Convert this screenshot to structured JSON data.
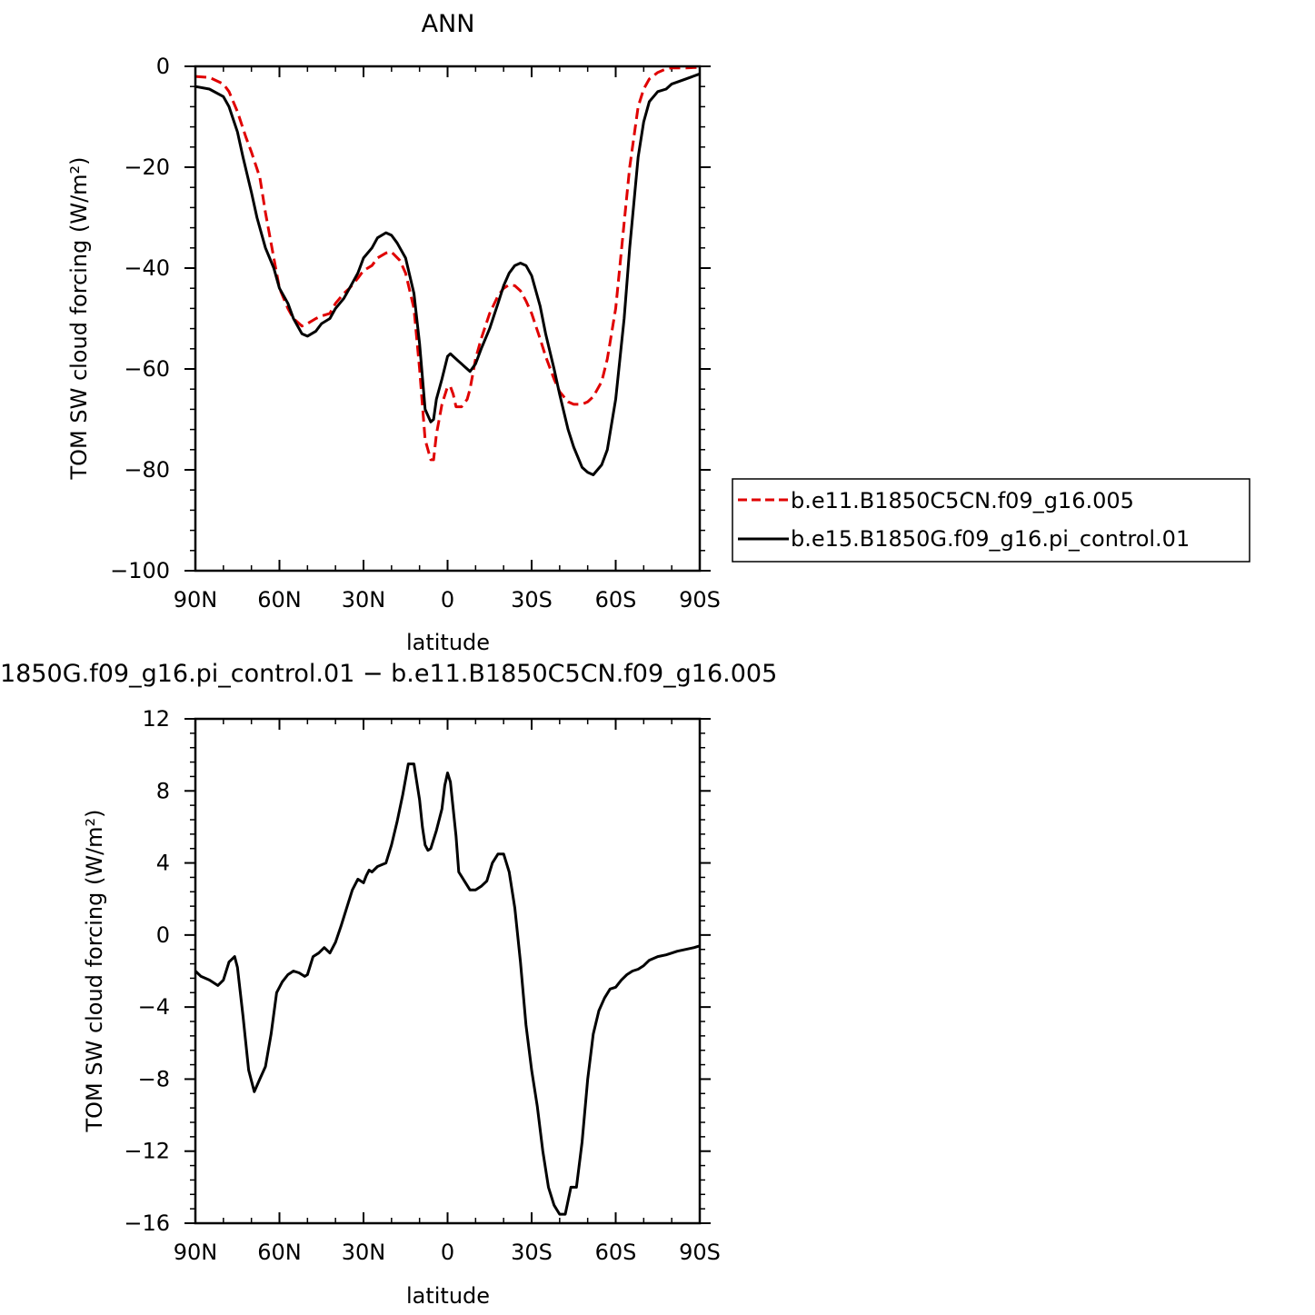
{
  "chart_data": [
    {
      "type": "line",
      "title": "ANN",
      "xlabel": "latitude",
      "ylabel": "TOM SW cloud forcing (W/m²)",
      "xlim": [
        -90,
        90
      ],
      "ylim": [
        -100,
        0
      ],
      "xticks": [
        -90,
        -60,
        -30,
        0,
        30,
        60,
        90
      ],
      "xtick_labels": [
        "90N",
        "60N",
        "30N",
        "0",
        "30S",
        "60S",
        "90S"
      ],
      "yticks": [
        0,
        -20,
        -40,
        -60,
        -80,
        -100
      ],
      "ytick_labels": [
        "0",
        "−20",
        "−40",
        "−60",
        "−80",
        "−100"
      ],
      "legend_position": "right",
      "series": [
        {
          "name": "b.e11.B1850C5CN.f09_g16.005",
          "color": "#e00000",
          "style": "dashed",
          "x": [
            -90,
            -85,
            -80,
            -78,
            -75,
            -72,
            -70,
            -67,
            -65,
            -62,
            -60,
            -57,
            -55,
            -52,
            -50,
            -47,
            -45,
            -42,
            -40,
            -37,
            -35,
            -32,
            -30,
            -27,
            -25,
            -22,
            -20,
            -17,
            -15,
            -12,
            -10,
            -8,
            -6,
            -5,
            -4,
            -2,
            0,
            1,
            2,
            3,
            5,
            7,
            8,
            10,
            12,
            15,
            18,
            20,
            22,
            24,
            26,
            28,
            30,
            33,
            35,
            38,
            40,
            43,
            45,
            48,
            50,
            52,
            55,
            57,
            60,
            63,
            65,
            68,
            70,
            72,
            75,
            78,
            80,
            85,
            90
          ],
          "values": [
            -2,
            -2.2,
            -3.5,
            -5,
            -9,
            -14,
            -17,
            -22,
            -29,
            -38,
            -44,
            -48,
            -50,
            -51.5,
            -51,
            -50,
            -49.5,
            -49,
            -47,
            -45,
            -44,
            -42,
            -40.5,
            -39.5,
            -38,
            -37,
            -36.8,
            -38.5,
            -41,
            -48,
            -60,
            -74,
            -78,
            -78,
            -73,
            -67,
            -63.5,
            -63.5,
            -65,
            -67.5,
            -67.5,
            -66,
            -64,
            -58,
            -54,
            -49,
            -45.5,
            -44,
            -43.3,
            -43.5,
            -44.5,
            -46.5,
            -49,
            -54,
            -57.5,
            -62,
            -64.5,
            -66.5,
            -67,
            -67,
            -66.5,
            -65.5,
            -62.5,
            -58,
            -48,
            -31,
            -20,
            -8,
            -4.5,
            -2.5,
            -1.2,
            -0.5,
            -0.3,
            -0.3,
            -0.2
          ]
        },
        {
          "name": "b.e15.B1850G.f09_g16.pi_control.01",
          "color": "#000000",
          "style": "solid",
          "x": [
            -90,
            -85,
            -80,
            -78,
            -75,
            -73,
            -70,
            -68,
            -65,
            -62,
            -60,
            -57,
            -55,
            -52,
            -50,
            -47,
            -45,
            -42,
            -40,
            -37,
            -35,
            -32,
            -30,
            -27,
            -25,
            -22,
            -20,
            -18,
            -15,
            -12,
            -10,
            -8,
            -6,
            -5,
            -4,
            -2,
            0,
            1,
            2,
            4,
            6,
            8,
            10,
            12,
            15,
            18,
            20,
            22,
            24,
            26,
            28,
            30,
            33,
            35,
            38,
            40,
            43,
            45,
            48,
            50,
            52,
            55,
            57,
            60,
            63,
            65,
            68,
            70,
            72,
            75,
            78,
            80,
            85,
            90
          ],
          "values": [
            -4,
            -4.5,
            -6,
            -8,
            -13,
            -18,
            -25,
            -30,
            -36,
            -40,
            -44,
            -47,
            -50,
            -53,
            -53.5,
            -52.5,
            -51,
            -50,
            -48,
            -46,
            -44,
            -41,
            -38,
            -36,
            -34,
            -33,
            -33.5,
            -35,
            -38,
            -45,
            -55,
            -68,
            -70.5,
            -70,
            -66,
            -62,
            -57.5,
            -57,
            -57.5,
            -58.5,
            -59.5,
            -60.5,
            -59,
            -56,
            -52,
            -47,
            -43.5,
            -41,
            -39.5,
            -39,
            -39.5,
            -41.5,
            -47.5,
            -53,
            -60,
            -65,
            -72,
            -75.5,
            -79.5,
            -80.5,
            -81,
            -79,
            -76,
            -66,
            -50,
            -36,
            -18,
            -11,
            -7,
            -5,
            -4.5,
            -3.5,
            -2.5,
            -1.5
          ]
        }
      ]
    },
    {
      "type": "line",
      "title": "1850G.f09_g16.pi_control.01 − b.e11.B1850C5CN.f09_g16.005",
      "xlabel": "latitude",
      "ylabel": "TOM SW cloud forcing (W/m²)",
      "xlim": [
        -90,
        90
      ],
      "ylim": [
        -16,
        12
      ],
      "xticks": [
        -90,
        -60,
        -30,
        0,
        30,
        60,
        90
      ],
      "xtick_labels": [
        "90N",
        "60N",
        "30N",
        "0",
        "30S",
        "60S",
        "90S"
      ],
      "yticks": [
        12,
        8,
        4,
        0,
        -4,
        -8,
        -12,
        -16
      ],
      "ytick_labels": [
        "12",
        "8",
        "4",
        "0",
        "−4",
        "−8",
        "−12",
        "−16"
      ],
      "series": [
        {
          "color": "#000000",
          "style": "solid",
          "x": [
            -90,
            -88,
            -85,
            -82,
            -80,
            -78,
            -76,
            -75,
            -73,
            -71,
            -69,
            -67,
            -65,
            -63,
            -61,
            -59,
            -57,
            -55,
            -53,
            -51,
            -50,
            -48,
            -46,
            -44,
            -42,
            -40,
            -38,
            -36,
            -34,
            -32,
            -30,
            -29,
            -28,
            -27,
            -25,
            -22,
            -20,
            -18,
            -16,
            -14,
            -12,
            -10,
            -9,
            -8,
            -7,
            -6,
            -4,
            -2,
            -1,
            0,
            1,
            2,
            3,
            4,
            6,
            8,
            10,
            12,
            14,
            16,
            18,
            20,
            22,
            24,
            26,
            28,
            30,
            32,
            34,
            36,
            38,
            40,
            42,
            44,
            46,
            48,
            50,
            52,
            54,
            56,
            58,
            60,
            62,
            64,
            66,
            68,
            70,
            72,
            75,
            78,
            80,
            82,
            85,
            88,
            90
          ],
          "values": [
            -2,
            -2.3,
            -2.5,
            -2.8,
            -2.5,
            -1.5,
            -1.2,
            -1.8,
            -4.5,
            -7.5,
            -8.7,
            -8,
            -7.3,
            -5.5,
            -3.2,
            -2.6,
            -2.2,
            -2.0,
            -2.1,
            -2.3,
            -2.2,
            -1.2,
            -1.0,
            -0.7,
            -1.0,
            -0.4,
            0.5,
            1.5,
            2.5,
            3.1,
            2.9,
            3.3,
            3.6,
            3.5,
            3.8,
            4.0,
            5.0,
            6.3,
            7.8,
            9.5,
            9.5,
            7.5,
            6.0,
            5.0,
            4.7,
            4.8,
            5.8,
            7.0,
            8.3,
            9.0,
            8.5,
            7.0,
            5.5,
            3.5,
            3.0,
            2.5,
            2.5,
            2.7,
            3.0,
            4.0,
            4.5,
            4.5,
            3.5,
            1.5,
            -1.5,
            -5.0,
            -7.5,
            -9.5,
            -12.0,
            -14.0,
            -15.0,
            -15.5,
            -15.5,
            -14.0,
            -14.0,
            -11.5,
            -8.0,
            -5.5,
            -4.2,
            -3.5,
            -3.0,
            -2.9,
            -2.5,
            -2.2,
            -2.0,
            -1.9,
            -1.7,
            -1.4,
            -1.2,
            -1.1,
            -1.0,
            -0.9,
            -0.8,
            -0.7,
            -0.6
          ]
        }
      ]
    }
  ]
}
